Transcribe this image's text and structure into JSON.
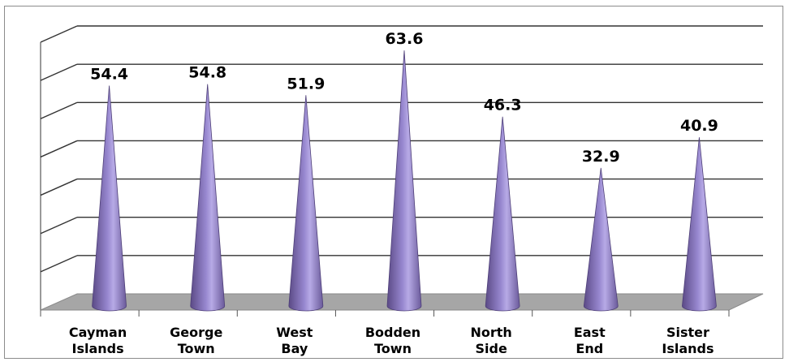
{
  "chart_data": {
    "type": "bar",
    "bar_shape": "cone",
    "categories": [
      [
        "Cayman",
        "Islands"
      ],
      [
        "George",
        "Town"
      ],
      [
        "West",
        "Bay"
      ],
      [
        "Bodden",
        "Town"
      ],
      [
        "North",
        "Side"
      ],
      [
        "East",
        "End"
      ],
      [
        "Sister",
        "Islands"
      ]
    ],
    "values": [
      54.4,
      54.8,
      51.9,
      63.6,
      46.3,
      32.9,
      40.9
    ],
    "value_labels": [
      "54.4",
      "54.8",
      "51.9",
      "63.6",
      "46.3",
      "32.9",
      "40.9"
    ],
    "ylim": [
      0,
      70
    ],
    "gridlines": 7,
    "grid": true,
    "legend": "none",
    "colors": {
      "cone_dark": "#5b4a86",
      "cone_mid": "#9787cf",
      "cone_light": "#b7aae6",
      "floor": "#a6a6a6",
      "grid": "#333333"
    }
  }
}
